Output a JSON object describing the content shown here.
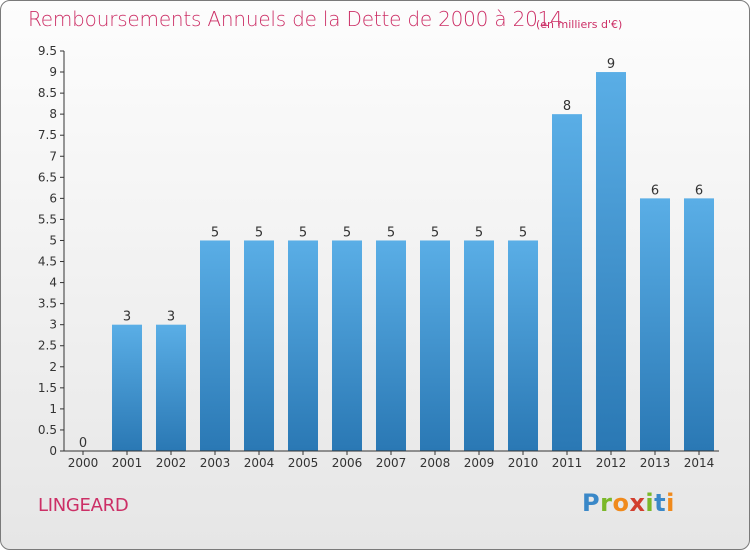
{
  "header": {
    "title": "Remboursements Annuels de la Dette de 2000 à 2014",
    "unit": "(en milliers d'€)"
  },
  "footer": {
    "commune": "LINGEARD",
    "logo_text": "Proxiti"
  },
  "colors": {
    "title": "#cc2f66",
    "bar_top": "#5aaee6",
    "bar_bottom": "#2a78b4",
    "axis": "#333333"
  },
  "chart_data": {
    "type": "bar",
    "title": "Remboursements Annuels de la Dette de 2000 à 2014",
    "xlabel": "",
    "ylabel": "",
    "categories": [
      "2000",
      "2001",
      "2002",
      "2003",
      "2004",
      "2005",
      "2006",
      "2007",
      "2008",
      "2009",
      "2010",
      "2011",
      "2012",
      "2013",
      "2014"
    ],
    "values": [
      0,
      3,
      3,
      5,
      5,
      5,
      5,
      5,
      5,
      5,
      5,
      8,
      9,
      6,
      6
    ],
    "data_labels": [
      "0",
      "3",
      "3",
      "5",
      "5",
      "5",
      "5",
      "5",
      "5",
      "5",
      "5",
      "8",
      "9",
      "6",
      "6"
    ],
    "yticks": [
      "0",
      "0.5",
      "1",
      "1.5",
      "2",
      "2.5",
      "3",
      "3.5",
      "4",
      "4.5",
      "5",
      "5.5",
      "6",
      "6.5",
      "7",
      "7.5",
      "8",
      "8.5",
      "9",
      "9.5"
    ],
    "ylim": [
      0,
      9.5
    ],
    "grid": false,
    "legend": "none"
  }
}
